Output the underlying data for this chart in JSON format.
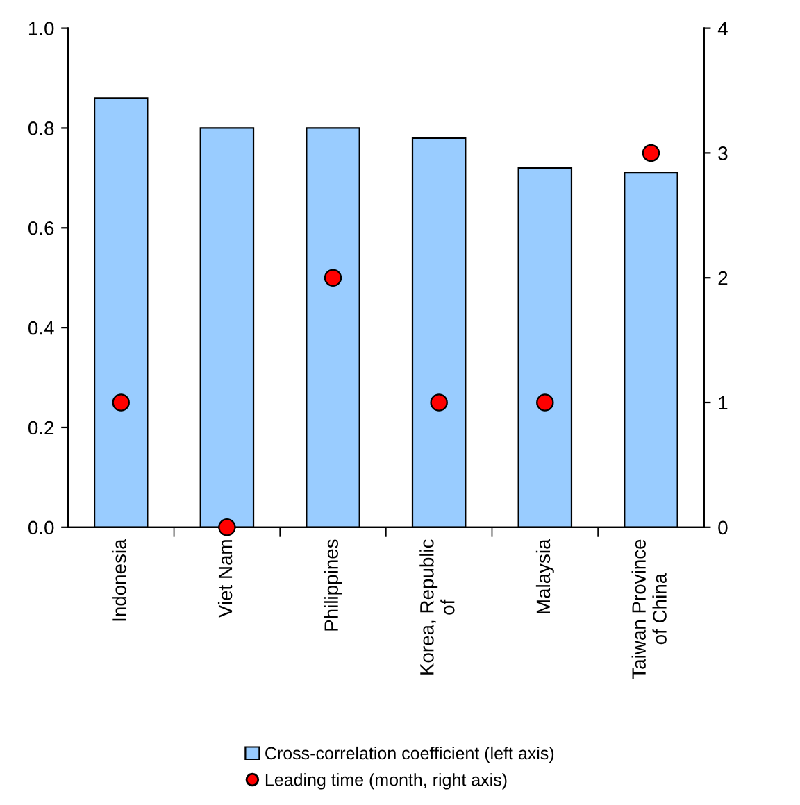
{
  "chart_data": {
    "type": "bar",
    "categories": [
      "Indonesia",
      "Viet Nam",
      "Philippines",
      "Korea, Republic\nof",
      "Malaysia",
      "Taiwan Province\nof China"
    ],
    "series": [
      {
        "name": "Cross-correlation coefficient (left axis)",
        "color": "#99ccff",
        "values": [
          0.86,
          0.8,
          0.8,
          0.78,
          0.72,
          0.71
        ]
      },
      {
        "name": "Leading time (month, right axis)",
        "type": "scatter",
        "axis": "y2",
        "color": "#ff0000",
        "marker": "circle",
        "values": [
          1,
          0,
          2,
          1,
          1,
          3
        ]
      }
    ],
    "ylim": [
      0,
      1.0
    ],
    "yticks": [
      {
        "value": 0,
        "label": "0.0"
      },
      0.2,
      0.4,
      0.6,
      0.8,
      {
        "value": 1.0,
        "label": "1.0"
      }
    ],
    "y2lim": [
      0,
      4
    ],
    "y2ticks": [
      0,
      1,
      2,
      3,
      4
    ],
    "grid": false,
    "legend": "bottom"
  }
}
